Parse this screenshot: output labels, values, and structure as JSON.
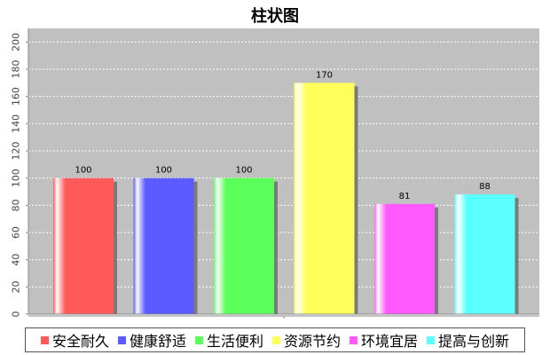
{
  "chart_data": {
    "type": "bar",
    "title": "柱状图",
    "xlabel": "",
    "ylabel": "",
    "categories": [
      "安全耐久",
      "健康舒适",
      "生活便利",
      "资源节约",
      "环境宜居",
      "提高与创新"
    ],
    "values": [
      100,
      100,
      100,
      170,
      81,
      88
    ],
    "colors": [
      "#ff5a5a",
      "#5a5aff",
      "#5aff5a",
      "#ffff5a",
      "#ff5aff",
      "#5affff"
    ],
    "ylim": [
      0,
      210
    ],
    "yticks": [
      0,
      20,
      40,
      60,
      80,
      100,
      120,
      140,
      160,
      180,
      200
    ],
    "grid": true,
    "legend_position": "bottom",
    "plot_background": "#c0c0c0"
  }
}
